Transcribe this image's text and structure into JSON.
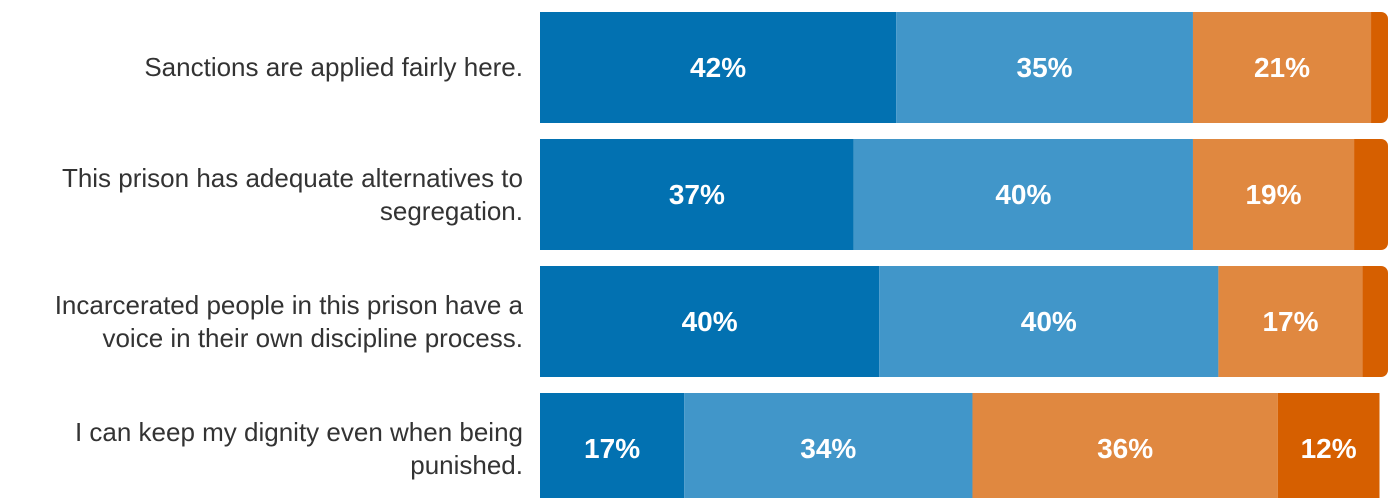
{
  "chart_data": {
    "type": "stacked-bar",
    "orientation": "horizontal",
    "categories": [
      "Sanctions are applied fairly here.",
      "This prison has adequate alternatives to segregation.",
      "Incarcerated people in this prison have a voice in their own discipline process.",
      "I can keep my dignity even when being punished."
    ],
    "xlim": [
      0,
      100
    ],
    "series": [
      {
        "color": "#0271b1",
        "values": [
          42,
          37,
          40,
          17
        ],
        "value_labels": [
          "42%",
          "37%",
          "40%",
          "17%"
        ]
      },
      {
        "color": "#4196c9",
        "values": [
          35,
          40,
          40,
          34
        ],
        "value_labels": [
          "35%",
          "40%",
          "40%",
          "34%"
        ]
      },
      {
        "color": "#e08840",
        "values": [
          21,
          19,
          17,
          36
        ],
        "value_labels": [
          "21%",
          "19%",
          "17%",
          "36%"
        ]
      },
      {
        "color": "#d65f00",
        "values": [
          2,
          4,
          3,
          12
        ],
        "value_labels": [
          null,
          null,
          null,
          "12%"
        ]
      }
    ]
  }
}
